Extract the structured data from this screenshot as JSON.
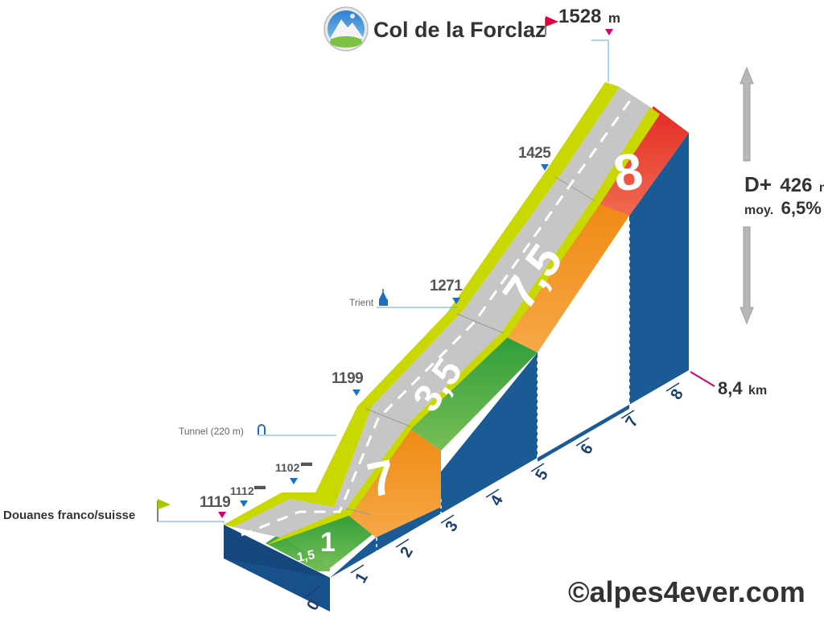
{
  "summit": {
    "name": "Col de la Forclaz",
    "altitude": "1528",
    "unit": "m"
  },
  "start": {
    "name": "Douanes franco/suisse",
    "altitude": "1119"
  },
  "stats": {
    "d_label": "D+",
    "d_value": "426",
    "d_unit": "m",
    "avg_label": "moy.",
    "avg_value": "6,5%"
  },
  "distance": {
    "value": "8,4",
    "unit": "km"
  },
  "markers": {
    "m1112": "1112",
    "m1102": "1102",
    "m1199": "1199",
    "m1271": "1271",
    "m1425": "1425"
  },
  "pois": {
    "tunnel": "Tunnel (220 m)",
    "trient": "Trient"
  },
  "km_ticks": [
    "0",
    "1",
    "2",
    "3",
    "4",
    "5",
    "6",
    "7",
    "8"
  ],
  "gradients": [
    {
      "label": "1,5",
      "color": "#2e9e3a"
    },
    {
      "label": "1",
      "color": "#2e9e3a"
    },
    {
      "label": "7",
      "color": "#f08a1c"
    },
    {
      "label": "3,5",
      "color": "#3fa33a"
    },
    {
      "label": "7,5",
      "color": "#f08a1c"
    },
    {
      "label": "8",
      "color": "#e4362b"
    }
  ],
  "credit": "©alpes4ever.com",
  "colors": {
    "side": "#1a5b96",
    "road": "#c8c8c8",
    "shoulder": "#c9d800",
    "accent_pink": "#d4006f",
    "accent_orange": "#f07d00",
    "marker_blue": "#1d6fc0"
  }
}
